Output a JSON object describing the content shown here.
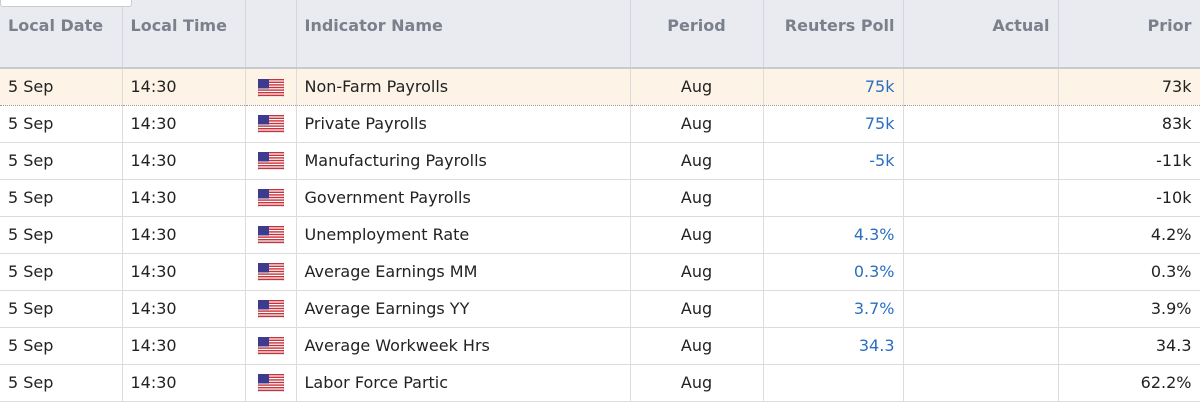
{
  "table": {
    "columns": [
      "Local Date",
      "Local Time",
      "Indicator Name",
      "Period",
      "Reuters Poll",
      "Actual",
      "Prior"
    ],
    "rows": [
      {
        "date": "5 Sep",
        "time": "14:30",
        "name": "Non-Farm Payrolls",
        "period": "Aug",
        "poll": "75k",
        "prior": "73k"
      },
      {
        "date": "5 Sep",
        "time": "14:30",
        "name": "Private Payrolls",
        "period": "Aug",
        "poll": "75k",
        "prior": "83k"
      },
      {
        "date": "5 Sep",
        "time": "14:30",
        "name": "Manufacturing Payrolls",
        "period": "Aug",
        "poll": "-5k",
        "prior": "-11k"
      },
      {
        "date": "5 Sep",
        "time": "14:30",
        "name": "Government Payrolls",
        "period": "Aug",
        "prior": "-10k"
      },
      {
        "date": "5 Sep",
        "time": "14:30",
        "name": "Unemployment Rate",
        "period": "Aug",
        "poll": "4.3%",
        "prior": "4.2%"
      },
      {
        "date": "5 Sep",
        "time": "14:30",
        "name": "Average Earnings MM",
        "period": "Aug",
        "poll": "0.3%",
        "prior": "0.3%"
      },
      {
        "date": "5 Sep",
        "time": "14:30",
        "name": "Average Earnings YY",
        "period": "Aug",
        "poll": "3.7%",
        "prior": "3.9%"
      },
      {
        "date": "5 Sep",
        "time": "14:30",
        "name": "Average Workweek Hrs",
        "period": "Aug",
        "poll": "34.3",
        "prior": "34.3"
      },
      {
        "date": "5 Sep",
        "time": "14:30",
        "name": "Labor Force Partic",
        "period": "Aug",
        "prior": "62.2%"
      }
    ]
  }
}
